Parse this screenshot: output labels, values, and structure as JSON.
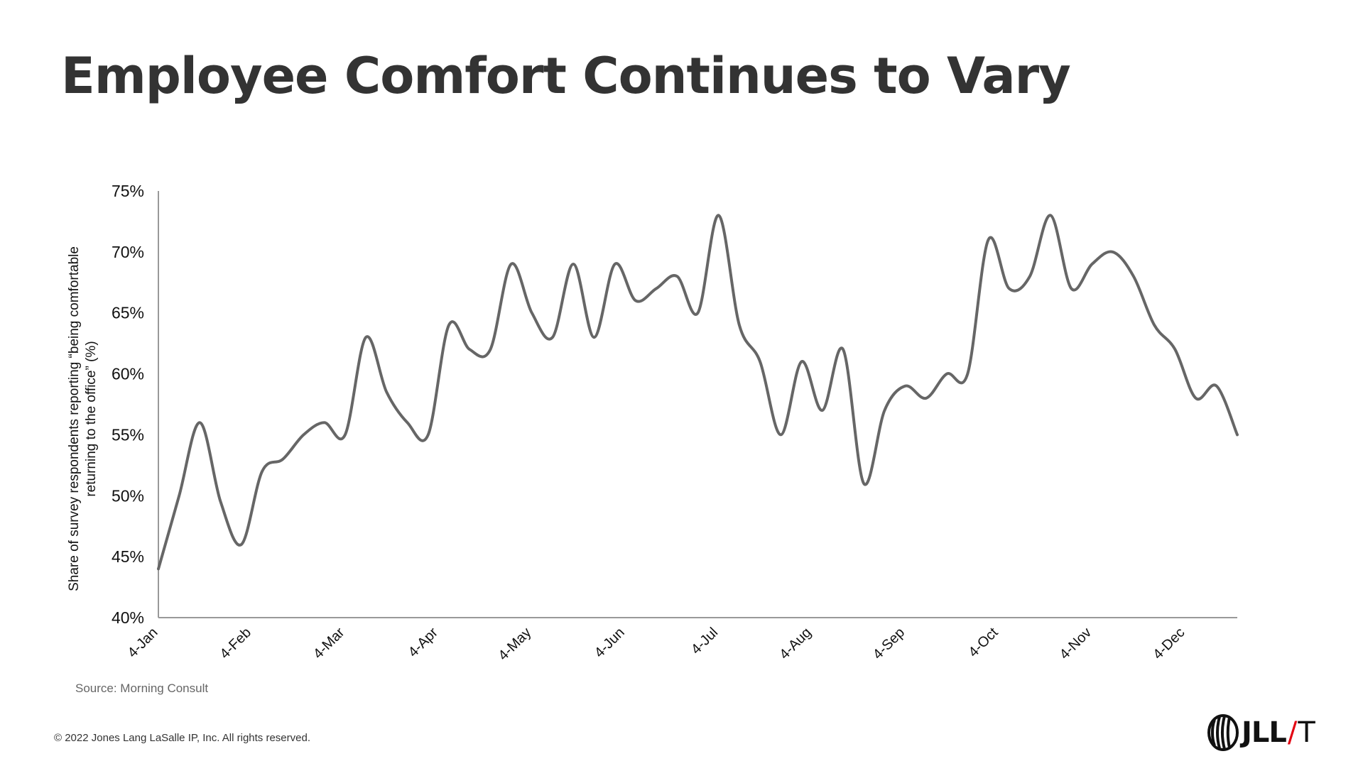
{
  "slide": {
    "title": "Employee Comfort Continues to Vary",
    "source": "Source: Morning Consult",
    "copyright": "© 2022 Jones Lang LaSalle IP, Inc. All rights reserved.",
    "logo": {
      "brand": "JLL",
      "slash": "/",
      "suffix": "T"
    }
  },
  "colors": {
    "line": "#666666",
    "axis": "#999999",
    "title": "#333333",
    "logo_slash": "#e30613"
  },
  "chart_data": {
    "type": "line",
    "ylabel_line1": "Share of survey respondents reporting “being comfortable",
    "ylabel_line2": "returning to the office” (%)",
    "xlabel": "",
    "ylim": [
      40,
      75
    ],
    "y_ticks": [
      "40%",
      "45%",
      "50%",
      "55%",
      "60%",
      "65%",
      "70%",
      "75%"
    ],
    "y_tick_values": [
      40,
      45,
      50,
      55,
      60,
      65,
      70,
      75
    ],
    "x_tick_labels": [
      "4-Jan",
      "4-Feb",
      "4-Mar",
      "4-Apr",
      "4-May",
      "4-Jun",
      "4-Jul",
      "4-Aug",
      "4-Sep",
      "4-Oct",
      "4-Nov",
      "4-Dec"
    ],
    "x_tick_index": [
      0,
      4.5,
      9,
      13.5,
      18,
      22.5,
      27,
      31.5,
      36,
      40.5,
      45,
      49.5
    ],
    "grid": false,
    "legend": "none",
    "series": [
      {
        "values": [
          44,
          50,
          56,
          49.5,
          46,
          52,
          53,
          55,
          56,
          55,
          63,
          58.5,
          56,
          55,
          64,
          62,
          62,
          69,
          65,
          63,
          69,
          63,
          69,
          66,
          67,
          68,
          65,
          73,
          64,
          61,
          55,
          61,
          57,
          62,
          51,
          57,
          59,
          58,
          60,
          60,
          71,
          67,
          68,
          73,
          67,
          69,
          70,
          68,
          64,
          62,
          58,
          59,
          55
        ]
      }
    ]
  }
}
